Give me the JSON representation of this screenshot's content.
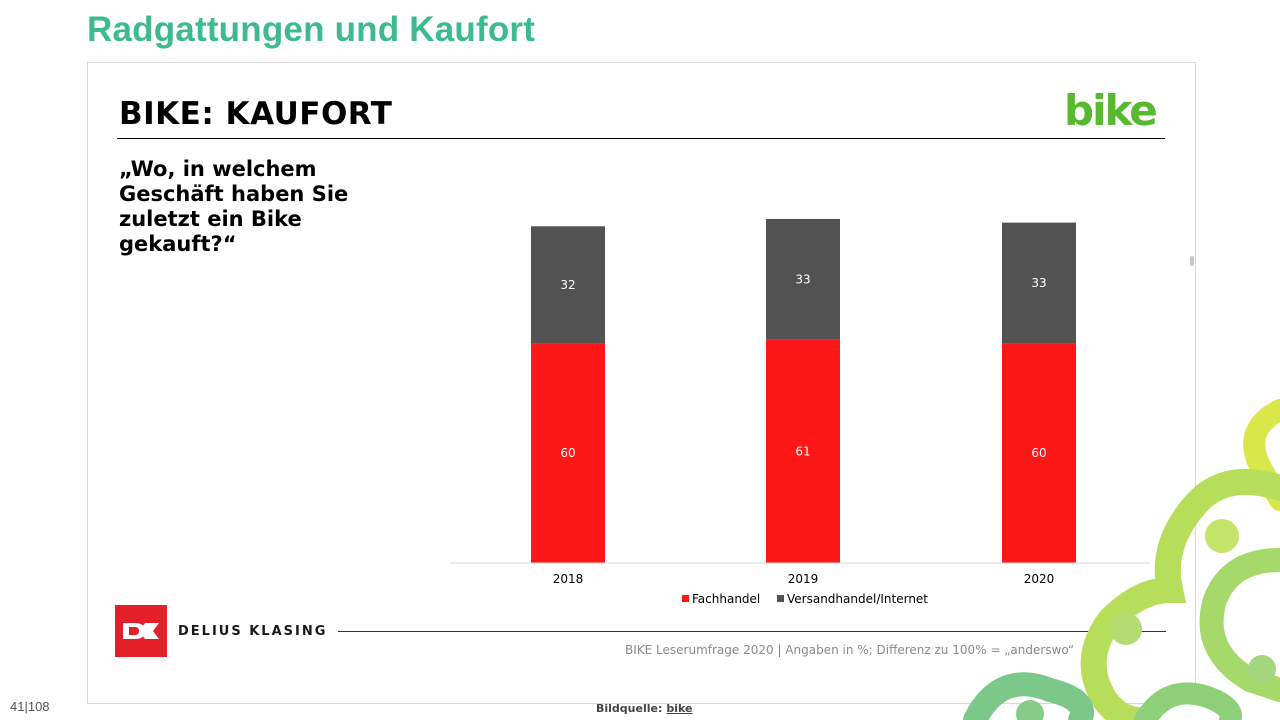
{
  "slide_title": "Radgattungen und Kaufort",
  "inner_title": "BIKE: KAUFORT",
  "logo_text": "bike",
  "question": "„Wo, in welchem Geschäft haben Sie zuletzt ein Bike gekauft?“",
  "brand": "DELIUS KLASING",
  "source_note": "BIKE Leserumfrage 2020 | Angaben in %; Differenz zu 100% = „anderswo“",
  "page_number": "41|108",
  "image_source_label": "Bildquelle:",
  "image_source_value": "bike",
  "colors": {
    "title_green": "#3dbb8c",
    "bike_logo_green": "#58b92e",
    "fachhandel": "#ff1616",
    "versandhandel": "#525252",
    "brand_red": "#e3202a"
  },
  "chart_data": {
    "type": "bar",
    "stacked": true,
    "categories": [
      "2018",
      "2019",
      "2020"
    ],
    "series": [
      {
        "name": "Fachhandel",
        "values": [
          60,
          61,
          60
        ],
        "color": "#ff1616"
      },
      {
        "name": "Versandhandel/Internet",
        "values": [
          32,
          33,
          33
        ],
        "color": "#525252"
      }
    ],
    "ylim": [
      0,
      100
    ],
    "legend": "bottom",
    "grid": false,
    "data_labels": true
  }
}
